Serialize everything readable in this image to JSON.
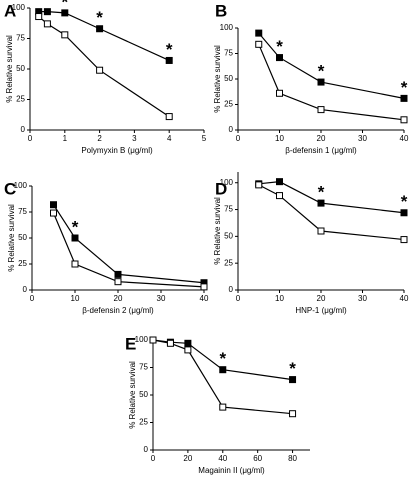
{
  "chart_data": [
    {
      "type": "line",
      "panel": "A",
      "ylabel": "% Relative survival",
      "xlabel": "Polymyxin B (μg/ml)",
      "xlim": [
        0,
        5
      ],
      "xticks": [
        0,
        1,
        2,
        3,
        4,
        5
      ],
      "ylim": [
        0,
        100
      ],
      "yticks": [
        0,
        25,
        50,
        75,
        100
      ],
      "x": [
        0.25,
        0.5,
        1,
        2,
        4
      ],
      "series": [
        {
          "color": "#000000",
          "marker_fill": "#000000",
          "values": [
            97,
            97,
            96,
            83,
            57
          ]
        },
        {
          "color": "#000000",
          "marker_fill": "#ffffff",
          "values": [
            93,
            87,
            78,
            49,
            11
          ]
        }
      ],
      "annotations": [
        {
          "text": "*",
          "x": 1
        },
        {
          "text": "*",
          "x": 2
        },
        {
          "text": "*",
          "x": 4
        }
      ]
    },
    {
      "type": "line",
      "panel": "B",
      "ylabel": "% Relative survival",
      "xlabel": "β-defensin 1 (μg/ml)",
      "xlim": [
        0,
        40
      ],
      "xticks": [
        0,
        10,
        20,
        30,
        40
      ],
      "ylim": [
        0,
        100
      ],
      "yticks": [
        0,
        25,
        50,
        75,
        100
      ],
      "x": [
        5,
        10,
        20,
        40
      ],
      "series": [
        {
          "color": "#000000",
          "marker_fill": "#000000",
          "values": [
            95,
            71,
            47,
            31
          ]
        },
        {
          "color": "#000000",
          "marker_fill": "#ffffff",
          "values": [
            84,
            36,
            20,
            10
          ]
        }
      ],
      "annotations": [
        {
          "text": "*",
          "x": 10
        },
        {
          "text": "*",
          "x": 20
        },
        {
          "text": "*",
          "x": 40
        }
      ]
    },
    {
      "type": "line",
      "panel": "C",
      "ylabel": "% Relative survival",
      "xlabel": "β-defensin 2 (μg/ml)",
      "xlim": [
        0,
        40
      ],
      "xticks": [
        0,
        10,
        20,
        30,
        40
      ],
      "ylim": [
        0,
        100
      ],
      "yticks": [
        0,
        25,
        50,
        75,
        100
      ],
      "x": [
        5,
        10,
        20,
        40
      ],
      "series": [
        {
          "color": "#000000",
          "marker_fill": "#000000",
          "values": [
            82,
            50,
            15,
            7
          ]
        },
        {
          "color": "#000000",
          "marker_fill": "#ffffff",
          "values": [
            74,
            25,
            8,
            3
          ]
        }
      ],
      "annotations": [
        {
          "text": "*",
          "x": 10
        }
      ]
    },
    {
      "type": "line",
      "panel": "D",
      "ylabel": "% Relative survival",
      "xlabel": "HNP-1 (μg/ml)",
      "xlim": [
        0,
        40
      ],
      "xticks": [
        0,
        10,
        20,
        30,
        40
      ],
      "ylim": [
        0,
        110
      ],
      "yticks": [
        0,
        25,
        50,
        75,
        100
      ],
      "x": [
        5,
        10,
        20,
        40
      ],
      "series": [
        {
          "color": "#000000",
          "marker_fill": "#000000",
          "values": [
            99,
            101,
            81,
            72
          ]
        },
        {
          "color": "#000000",
          "marker_fill": "#ffffff",
          "values": [
            98,
            88,
            55,
            47
          ]
        }
      ],
      "annotations": [
        {
          "text": "*",
          "x": 20
        },
        {
          "text": "*",
          "x": 40
        }
      ]
    },
    {
      "type": "line",
      "panel": "E",
      "ylabel": "% Relative survival",
      "xlabel": "Magainin II (μg/ml)",
      "xlim": [
        0,
        90
      ],
      "xticks": [
        0,
        20,
        40,
        60,
        80
      ],
      "ylim": [
        0,
        100
      ],
      "yticks": [
        0,
        25,
        50,
        75,
        100
      ],
      "x": [
        0,
        10,
        20,
        40,
        80
      ],
      "series": [
        {
          "color": "#000000",
          "marker_fill": "#000000",
          "values": [
            100,
            98,
            97,
            73,
            64
          ]
        },
        {
          "color": "#000000",
          "marker_fill": "#ffffff",
          "values": [
            100,
            97,
            91,
            39,
            33
          ]
        }
      ],
      "annotations": [
        {
          "text": "*",
          "x": 40
        },
        {
          "text": "*",
          "x": 80
        }
      ]
    }
  ]
}
